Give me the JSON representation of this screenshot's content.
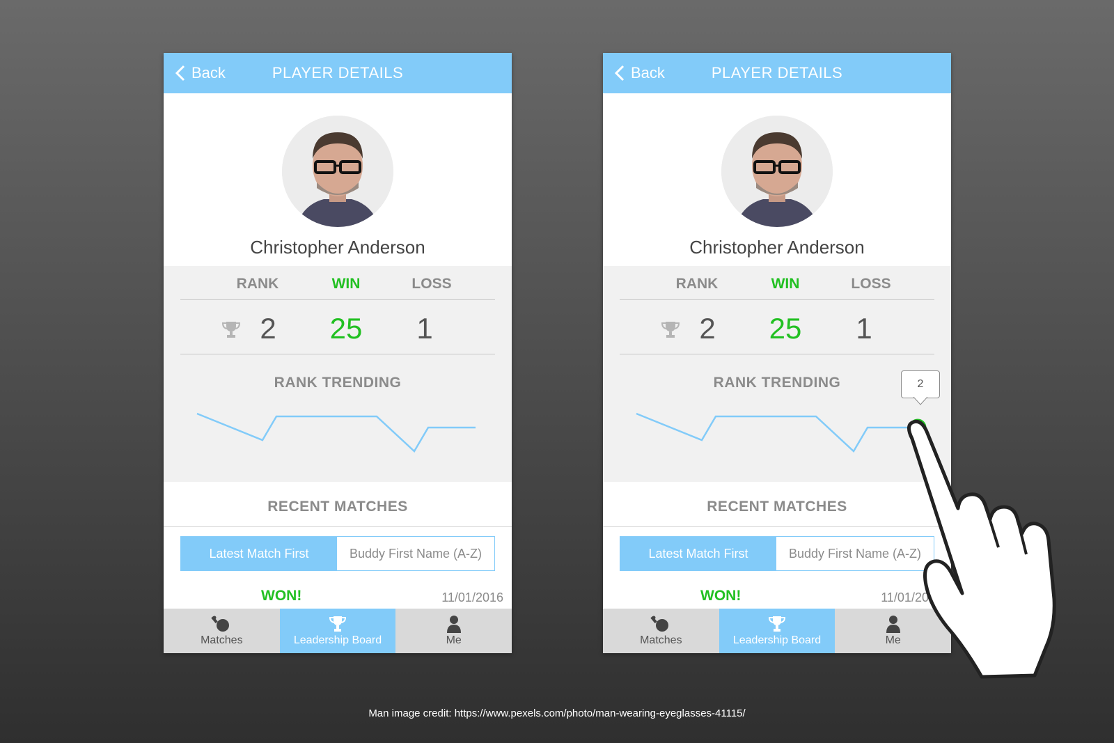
{
  "header": {
    "back_label": "Back",
    "title": "PLAYER DETAILS"
  },
  "player": {
    "name": "Christopher Anderson"
  },
  "stats": {
    "rank_label": "RANK",
    "win_label": "WIN",
    "loss_label": "LOSS",
    "rank": "2",
    "wins": "25",
    "losses": "1"
  },
  "trend": {
    "title": "RANK TRENDING",
    "tooltip_value": "2"
  },
  "recent": {
    "title": "RECENT MATCHES",
    "sort_active": "Latest Match First",
    "sort_inactive": "Buddy First Name (A-Z)",
    "match_result": "WON!",
    "match_date": "11/01/2016"
  },
  "tabs": [
    {
      "label": "Matches",
      "icon": "ping-pong-icon"
    },
    {
      "label": "Leadership Board",
      "icon": "trophy-icon"
    },
    {
      "label": "Me",
      "icon": "person-icon"
    }
  ],
  "footer": {
    "credit": "Man image credit: https://www.pexels.com/photo/man-wearing-eyeglasses-41115/"
  },
  "colors": {
    "accent": "#82cbf9",
    "win": "#22c022",
    "trend_line": "#82cbf9",
    "selected_point": "#22c022"
  }
}
